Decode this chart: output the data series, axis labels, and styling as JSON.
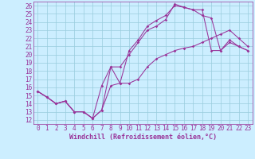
{
  "xlabel": "Windchill (Refroidissement éolien,°C)",
  "bg_color": "#cceeff",
  "grid_color": "#99ccdd",
  "line_color": "#993399",
  "xlim": [
    -0.5,
    23.5
  ],
  "ylim": [
    11.5,
    26.5
  ],
  "xticks": [
    0,
    1,
    2,
    3,
    4,
    5,
    6,
    7,
    8,
    9,
    10,
    11,
    12,
    13,
    14,
    15,
    16,
    17,
    18,
    19,
    20,
    21,
    22,
    23
  ],
  "yticks": [
    12,
    13,
    14,
    15,
    16,
    17,
    18,
    19,
    20,
    21,
    22,
    23,
    24,
    25,
    26
  ],
  "line1_x": [
    0,
    1,
    2,
    3,
    4,
    5,
    6,
    7,
    8,
    9,
    10,
    11,
    12,
    13,
    14,
    15,
    16,
    17,
    18,
    19,
    20,
    21,
    22,
    23
  ],
  "line1_y": [
    15.5,
    14.8,
    14.0,
    14.3,
    13.0,
    13.0,
    12.2,
    13.2,
    18.5,
    18.5,
    20.0,
    21.5,
    23.0,
    23.5,
    24.3,
    26.2,
    25.8,
    25.5,
    24.8,
    24.5,
    20.5,
    21.5,
    21.0,
    20.5
  ],
  "line2_x": [
    0,
    1,
    2,
    3,
    4,
    5,
    6,
    7,
    8,
    9,
    10,
    11,
    12,
    13,
    14,
    15,
    16,
    17,
    18,
    19,
    20,
    21,
    22,
    23
  ],
  "line2_y": [
    15.5,
    14.8,
    14.0,
    14.3,
    13.0,
    13.0,
    12.2,
    16.2,
    18.5,
    16.5,
    16.5,
    17.0,
    18.5,
    19.5,
    20.0,
    20.5,
    20.8,
    21.0,
    21.5,
    22.0,
    22.5,
    23.0,
    22.0,
    21.0
  ],
  "line3_x": [
    0,
    1,
    2,
    3,
    4,
    5,
    6,
    7,
    8,
    9,
    10,
    11,
    12,
    13,
    14,
    15,
    16,
    17,
    18,
    19,
    20,
    21,
    22,
    23
  ],
  "line3_y": [
    15.5,
    14.8,
    14.0,
    14.3,
    13.0,
    13.0,
    12.2,
    13.2,
    16.2,
    16.5,
    20.5,
    21.8,
    23.5,
    24.2,
    24.8,
    26.0,
    25.8,
    25.5,
    25.5,
    20.5,
    20.5,
    21.8,
    21.0,
    20.5
  ],
  "font_family": "monospace",
  "tick_fontsize": 5.5,
  "label_fontsize": 6.0,
  "marker": "D",
  "markersize": 1.8,
  "linewidth": 0.75
}
